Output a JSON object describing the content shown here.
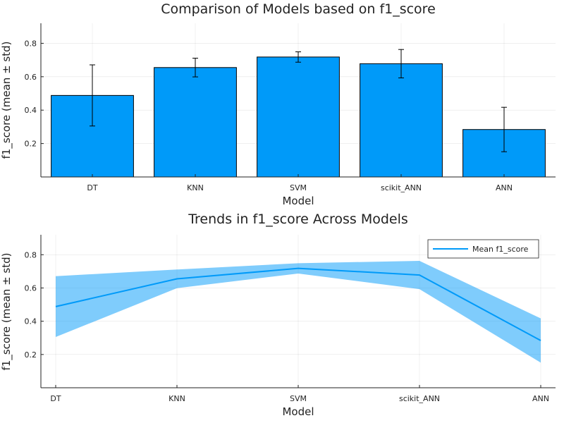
{
  "chart_data": [
    {
      "type": "bar",
      "title": "Comparison of Models based on f1_score",
      "xlabel": "Model",
      "ylabel": "f1_score (mean ± std)",
      "categories": [
        "DT",
        "KNN",
        "SVM",
        "scikit_ANN",
        "ANN"
      ],
      "values": [
        0.488,
        0.655,
        0.718,
        0.678,
        0.284
      ],
      "errors": [
        0.183,
        0.056,
        0.031,
        0.085,
        0.133
      ],
      "ylim": [
        0.0,
        0.92
      ],
      "yticks": [
        0.2,
        0.4,
        0.6,
        0.8
      ],
      "ytick_labels": [
        "0.2",
        "0.4",
        "0.6",
        "0.8"
      ],
      "grid": true,
      "bar_color": "#009AF9"
    },
    {
      "type": "line",
      "title": "Trends in f1_score Across Models",
      "xlabel": "Model",
      "ylabel": "f1_score (mean ± std)",
      "categories": [
        "DT",
        "KNN",
        "SVM",
        "scikit_ANN",
        "ANN"
      ],
      "series": [
        {
          "name": "Mean f1_score",
          "values": [
            0.488,
            0.655,
            0.718,
            0.678,
            0.284
          ],
          "band": [
            0.183,
            0.056,
            0.031,
            0.085,
            0.133
          ]
        }
      ],
      "ylim": [
        0.0,
        0.92
      ],
      "yticks": [
        0.2,
        0.4,
        0.6,
        0.8
      ],
      "ytick_labels": [
        "0.2",
        "0.4",
        "0.6",
        "0.8"
      ],
      "legend_position": "top-right",
      "grid": true,
      "line_color": "#009AF9",
      "band_color": "#009AF9"
    }
  ]
}
